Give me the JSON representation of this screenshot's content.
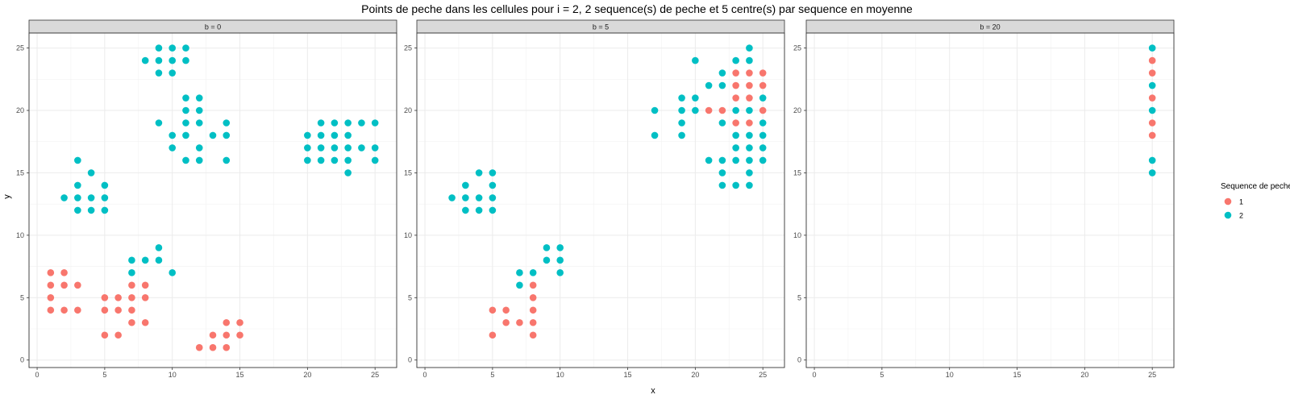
{
  "chart_data": {
    "type": "scatter",
    "title": "Points de peche dans les cellules pour i = 2, 2 sequence(s) de peche et 5 centre(s) par sequence en moyenne",
    "xlabel": "x",
    "ylabel": "y",
    "xlim": [
      -0.6,
      26.6
    ],
    "ylim": [
      -0.6,
      26.2
    ],
    "x_ticks": [
      0,
      5,
      10,
      15,
      20,
      25
    ],
    "y_ticks": [
      0,
      5,
      10,
      15,
      20,
      25
    ],
    "grid": true,
    "legend": {
      "title": "Sequence de peche",
      "position": "right",
      "entries": [
        {
          "label": "1",
          "color": "#F8766D"
        },
        {
          "label": "2",
          "color": "#00BFC4"
        }
      ]
    },
    "facets": [
      {
        "label": "b = 0",
        "series": [
          {
            "name": "1",
            "color": "#F8766D",
            "points": [
              [
                1,
                7
              ],
              [
                1,
                6
              ],
              [
                1,
                5
              ],
              [
                1,
                4
              ],
              [
                2,
                7
              ],
              [
                2,
                6
              ],
              [
                2,
                4
              ],
              [
                3,
                6
              ],
              [
                3,
                4
              ],
              [
                5,
                5
              ],
              [
                5,
                4
              ],
              [
                5,
                2
              ],
              [
                6,
                5
              ],
              [
                6,
                4
              ],
              [
                6,
                2
              ],
              [
                7,
                6
              ],
              [
                7,
                5
              ],
              [
                7,
                4
              ],
              [
                7,
                3
              ],
              [
                8,
                6
              ],
              [
                8,
                5
              ],
              [
                8,
                3
              ],
              [
                12,
                1
              ],
              [
                13,
                2
              ],
              [
                13,
                1
              ],
              [
                14,
                3
              ],
              [
                14,
                2
              ],
              [
                14,
                1
              ],
              [
                15,
                3
              ],
              [
                15,
                2
              ]
            ]
          },
          {
            "name": "2",
            "color": "#00BFC4",
            "points": [
              [
                2,
                13
              ],
              [
                3,
                16
              ],
              [
                3,
                14
              ],
              [
                3,
                13
              ],
              [
                3,
                12
              ],
              [
                4,
                15
              ],
              [
                4,
                13
              ],
              [
                4,
                12
              ],
              [
                5,
                14
              ],
              [
                5,
                13
              ],
              [
                5,
                12
              ],
              [
                7,
                8
              ],
              [
                7,
                7
              ],
              [
                8,
                8
              ],
              [
                9,
                9
              ],
              [
                9,
                8
              ],
              [
                10,
                7
              ],
              [
                8,
                24
              ],
              [
                9,
                25
              ],
              [
                9,
                24
              ],
              [
                9,
                23
              ],
              [
                10,
                25
              ],
              [
                10,
                24
              ],
              [
                10,
                23
              ],
              [
                11,
                25
              ],
              [
                11,
                24
              ],
              [
                9,
                19
              ],
              [
                10,
                18
              ],
              [
                10,
                17
              ],
              [
                11,
                21
              ],
              [
                11,
                20
              ],
              [
                11,
                19
              ],
              [
                11,
                18
              ],
              [
                11,
                16
              ],
              [
                12,
                21
              ],
              [
                12,
                20
              ],
              [
                12,
                19
              ],
              [
                12,
                17
              ],
              [
                12,
                16
              ],
              [
                13,
                18
              ],
              [
                14,
                19
              ],
              [
                14,
                18
              ],
              [
                14,
                16
              ],
              [
                20,
                18
              ],
              [
                20,
                17
              ],
              [
                20,
                16
              ],
              [
                21,
                19
              ],
              [
                21,
                18
              ],
              [
                21,
                17
              ],
              [
                21,
                16
              ],
              [
                22,
                19
              ],
              [
                22,
                18
              ],
              [
                22,
                17
              ],
              [
                22,
                16
              ],
              [
                23,
                19
              ],
              [
                23,
                18
              ],
              [
                23,
                17
              ],
              [
                23,
                16
              ],
              [
                23,
                15
              ],
              [
                24,
                19
              ],
              [
                24,
                17
              ],
              [
                25,
                19
              ],
              [
                25,
                17
              ],
              [
                25,
                16
              ]
            ]
          }
        ]
      },
      {
        "label": "b = 5",
        "series": [
          {
            "name": "1",
            "color": "#F8766D",
            "points": [
              [
                5,
                4
              ],
              [
                5,
                2
              ],
              [
                6,
                4
              ],
              [
                6,
                3
              ],
              [
                7,
                3
              ],
              [
                8,
                6
              ],
              [
                8,
                5
              ],
              [
                8,
                4
              ],
              [
                8,
                3
              ],
              [
                8,
                2
              ],
              [
                21,
                20
              ],
              [
                22,
                20
              ],
              [
                23,
                23
              ],
              [
                23,
                22
              ],
              [
                23,
                21
              ],
              [
                23,
                19
              ],
              [
                24,
                23
              ],
              [
                24,
                22
              ],
              [
                24,
                21
              ],
              [
                24,
                19
              ],
              [
                25,
                23
              ],
              [
                25,
                22
              ],
              [
                25,
                20
              ]
            ]
          },
          {
            "name": "2",
            "color": "#00BFC4",
            "points": [
              [
                2,
                13
              ],
              [
                3,
                14
              ],
              [
                3,
                13
              ],
              [
                3,
                12
              ],
              [
                4,
                15
              ],
              [
                4,
                13
              ],
              [
                4,
                12
              ],
              [
                5,
                15
              ],
              [
                5,
                14
              ],
              [
                5,
                13
              ],
              [
                5,
                12
              ],
              [
                7,
                7
              ],
              [
                7,
                6
              ],
              [
                8,
                7
              ],
              [
                9,
                9
              ],
              [
                9,
                8
              ],
              [
                10,
                9
              ],
              [
                10,
                8
              ],
              [
                10,
                7
              ],
              [
                17,
                20
              ],
              [
                17,
                18
              ],
              [
                19,
                21
              ],
              [
                19,
                20
              ],
              [
                19,
                19
              ],
              [
                19,
                18
              ],
              [
                20,
                24
              ],
              [
                20,
                21
              ],
              [
                20,
                20
              ],
              [
                21,
                22
              ],
              [
                21,
                16
              ],
              [
                22,
                23
              ],
              [
                22,
                22
              ],
              [
                22,
                19
              ],
              [
                22,
                16
              ],
              [
                22,
                15
              ],
              [
                22,
                14
              ],
              [
                23,
                24
              ],
              [
                23,
                20
              ],
              [
                23,
                18
              ],
              [
                23,
                17
              ],
              [
                23,
                16
              ],
              [
                23,
                14
              ],
              [
                24,
                25
              ],
              [
                24,
                24
              ],
              [
                24,
                20
              ],
              [
                24,
                18
              ],
              [
                24,
                17
              ],
              [
                24,
                16
              ],
              [
                24,
                15
              ],
              [
                24,
                14
              ],
              [
                25,
                21
              ],
              [
                25,
                19
              ],
              [
                25,
                18
              ],
              [
                25,
                17
              ],
              [
                25,
                16
              ]
            ]
          }
        ]
      },
      {
        "label": "b = 20",
        "series": [
          {
            "name": "1",
            "color": "#F8766D",
            "points": [
              [
                25,
                24
              ],
              [
                25,
                23
              ],
              [
                25,
                21
              ],
              [
                25,
                19
              ],
              [
                25,
                18
              ]
            ]
          },
          {
            "name": "2",
            "color": "#00BFC4",
            "points": [
              [
                25,
                25
              ],
              [
                25,
                22
              ],
              [
                25,
                20
              ],
              [
                25,
                16
              ],
              [
                25,
                15
              ]
            ]
          }
        ]
      }
    ]
  }
}
